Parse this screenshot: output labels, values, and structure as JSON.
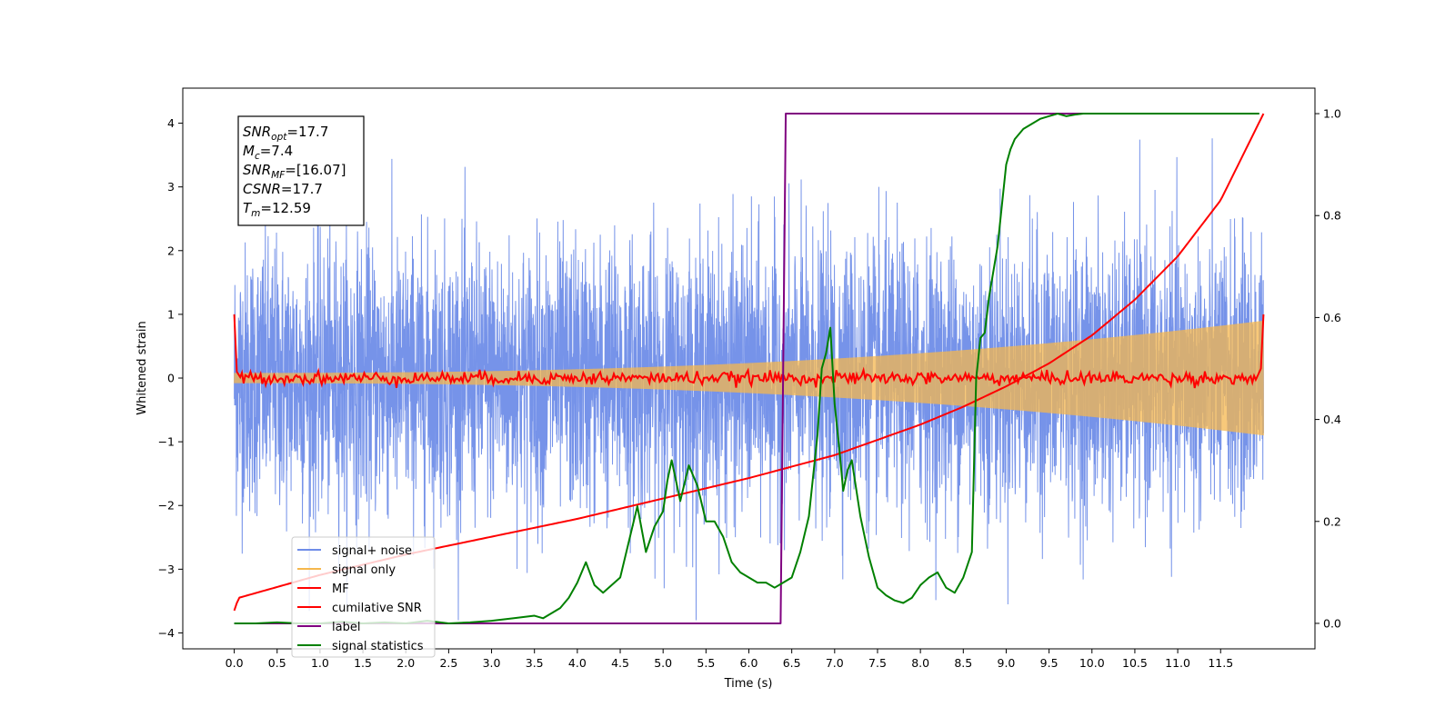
{
  "chart_data": {
    "type": "line",
    "title": "",
    "xlabel": "Time (s)",
    "ylabel": "Whitened strain",
    "xlim": [
      -0.6,
      12.6
    ],
    "ylim": [
      -4.25,
      4.55
    ],
    "ylim_right": [
      -0.05,
      1.05
    ],
    "x_ticks": [
      "0.0",
      "0.5",
      "1.0",
      "1.5",
      "2.0",
      "2.5",
      "3.0",
      "3.5",
      "4.0",
      "4.5",
      "5.0",
      "5.5",
      "6.0",
      "6.5",
      "7.0",
      "7.5",
      "8.0",
      "8.5",
      "9.0",
      "9.5",
      "10.0",
      "10.5",
      "11.0",
      "11.5"
    ],
    "y_ticks": [
      "−4",
      "−3",
      "−2",
      "−1",
      "0",
      "1",
      "2",
      "3",
      "4"
    ],
    "y_right_ticks": [
      "0.0",
      "0.2",
      "0.4",
      "0.6",
      "0.8",
      "1.0"
    ],
    "grid": false,
    "legend_position": "lower-left",
    "annotation": {
      "lines": [
        {
          "sym": "SNR",
          "sub": "opt",
          "val": "=17.7"
        },
        {
          "sym": "M",
          "sub": "c",
          "val": "=7.4"
        },
        {
          "sym": "SNR",
          "sub": "MF",
          "val": "=[16.07]"
        },
        {
          "sym": "CSNR",
          "sub": "",
          "val": "=17.7"
        },
        {
          "sym": "T",
          "sub": "m",
          "val": "=12.59"
        }
      ]
    },
    "noise_params": {
      "t_start": 0.0,
      "t_end": 12.0,
      "noise_sigma": 1.0,
      "noise_band": [
        -3.8,
        4.15
      ]
    },
    "series": [
      {
        "name": "signal+ noise",
        "color": "#6f8de8",
        "axis": "left",
        "kind": "noise"
      },
      {
        "name": "signal only",
        "color": "#f5b74d",
        "axis": "left",
        "kind": "chirp",
        "amplitude_start": 0.08,
        "amplitude_end": 0.9
      },
      {
        "name": "MF",
        "color": "#ff0000",
        "axis": "left",
        "kind": "mf",
        "start_value": 1.0,
        "end_value": 1.0,
        "baseline": 0.0
      },
      {
        "name": "cumilative SNR",
        "color": "#ff0000",
        "axis": "right",
        "x": [
          0.0,
          0.05,
          1.0,
          2.0,
          3.0,
          4.0,
          5.0,
          6.0,
          7.0,
          7.5,
          8.0,
          8.5,
          9.0,
          9.5,
          10.0,
          10.5,
          11.0,
          11.5,
          12.0
        ],
        "y": [
          0.025,
          0.05,
          0.095,
          0.135,
          0.17,
          0.205,
          0.245,
          0.285,
          0.33,
          0.36,
          0.39,
          0.425,
          0.465,
          0.51,
          0.565,
          0.635,
          0.72,
          0.83,
          1.0
        ]
      },
      {
        "name": "label",
        "color": "#800080",
        "axis": "right",
        "x": [
          0.0,
          6.37,
          6.43,
          11.95
        ],
        "y": [
          0.0,
          0.0,
          1.0,
          1.0
        ]
      },
      {
        "name": "signal statistics",
        "color": "#008000",
        "axis": "right",
        "x": [
          0.0,
          0.25,
          0.5,
          0.75,
          1.0,
          1.25,
          1.5,
          1.75,
          2.0,
          2.25,
          2.5,
          2.75,
          3.0,
          3.25,
          3.5,
          3.6,
          3.7,
          3.8,
          3.9,
          4.0,
          4.1,
          4.2,
          4.3,
          4.4,
          4.5,
          4.6,
          4.7,
          4.8,
          4.9,
          5.0,
          5.05,
          5.1,
          5.15,
          5.2,
          5.3,
          5.4,
          5.5,
          5.6,
          5.7,
          5.8,
          5.9,
          6.0,
          6.1,
          6.2,
          6.3,
          6.4,
          6.5,
          6.6,
          6.7,
          6.8,
          6.85,
          6.9,
          6.95,
          7.0,
          7.05,
          7.1,
          7.15,
          7.2,
          7.3,
          7.4,
          7.5,
          7.6,
          7.7,
          7.8,
          7.9,
          8.0,
          8.1,
          8.2,
          8.3,
          8.4,
          8.5,
          8.6,
          8.65,
          8.7,
          8.75,
          8.8,
          8.9,
          9.0,
          9.05,
          9.1,
          9.2,
          9.3,
          9.4,
          9.5,
          9.6,
          9.7,
          9.8,
          9.9,
          10.0,
          10.2,
          10.5,
          11.0,
          11.5,
          11.95
        ],
        "y": [
          0.0,
          0.0,
          0.002,
          0.0,
          0.0,
          0.003,
          0.0,
          0.002,
          0.0,
          0.005,
          0.0,
          0.002,
          0.005,
          0.01,
          0.015,
          0.01,
          0.02,
          0.03,
          0.05,
          0.08,
          0.12,
          0.075,
          0.06,
          0.075,
          0.09,
          0.16,
          0.23,
          0.14,
          0.19,
          0.22,
          0.28,
          0.32,
          0.28,
          0.24,
          0.31,
          0.27,
          0.2,
          0.2,
          0.17,
          0.12,
          0.1,
          0.09,
          0.08,
          0.08,
          0.07,
          0.08,
          0.09,
          0.14,
          0.21,
          0.37,
          0.5,
          0.53,
          0.58,
          0.43,
          0.35,
          0.26,
          0.3,
          0.32,
          0.21,
          0.13,
          0.07,
          0.055,
          0.045,
          0.04,
          0.05,
          0.075,
          0.09,
          0.1,
          0.07,
          0.06,
          0.09,
          0.14,
          0.48,
          0.56,
          0.57,
          0.64,
          0.74,
          0.9,
          0.93,
          0.95,
          0.97,
          0.98,
          0.99,
          0.995,
          1.0,
          0.995,
          0.998,
          1.0,
          1.0,
          1.0,
          1.0,
          1.0,
          1.0,
          1.0
        ]
      }
    ]
  }
}
